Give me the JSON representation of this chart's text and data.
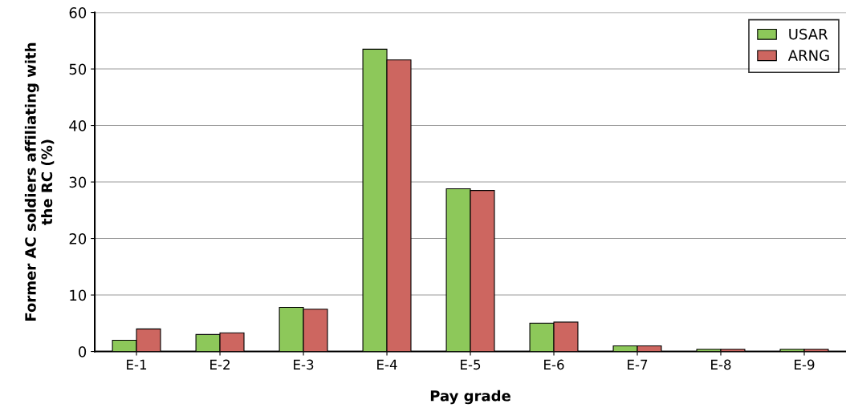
{
  "chart_data": {
    "type": "bar",
    "xlabel": "Pay grade",
    "ylabel": "Former AC soldiers affiliating with\nthe RC (%)",
    "categories": [
      "E-1",
      "E-2",
      "E-3",
      "E-4",
      "E-5",
      "E-6",
      "E-7",
      "E-8",
      "E-9"
    ],
    "series": [
      {
        "name": "USAR",
        "color": "#8dc85a",
        "values": [
          2.0,
          3.0,
          7.8,
          53.5,
          28.8,
          5.0,
          1.0,
          0.4,
          0.4
        ]
      },
      {
        "name": "ARNG",
        "color": "#cd6660",
        "values": [
          4.0,
          3.3,
          7.5,
          51.6,
          28.5,
          5.2,
          1.0,
          0.4,
          0.4
        ]
      }
    ],
    "ylim": [
      0,
      60
    ],
    "yticks": [
      0,
      10,
      20,
      30,
      40,
      50,
      60
    ],
    "grid": "y",
    "legend": "top right"
  }
}
